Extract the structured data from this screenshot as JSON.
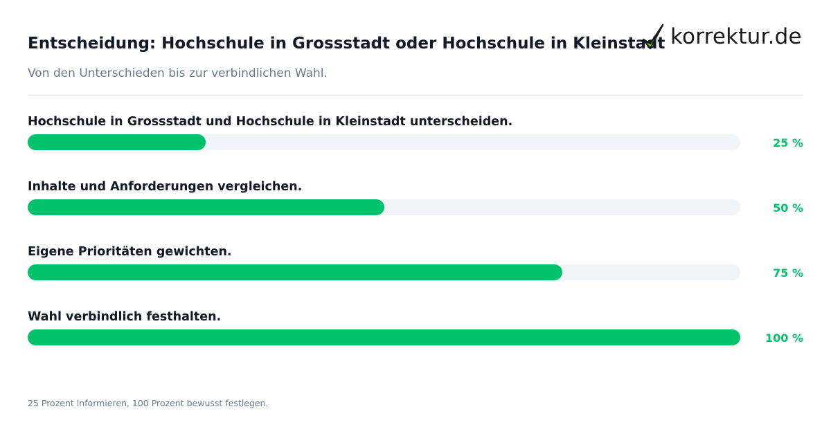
{
  "title": "Entscheidung: Hochschule in Grossstadt oder Hochschule in Kleinstadt",
  "subtitle": "Von den Unterschieden bis zur verbindlichen Wahl.",
  "logo": {
    "text": "korrektur.de",
    "icon": "checkmark-icon",
    "colors": {
      "check_fill": "#7ed321",
      "check_stroke": "#1a1a1a"
    }
  },
  "footnote": "25 Prozent informieren, 100 Prozent bewusst festlegen.",
  "colors": {
    "accent": "#00c26b",
    "track": "#f1f4f8",
    "text": "#111827",
    "muted": "#6b7a90"
  },
  "chart_data": {
    "type": "bar",
    "orientation": "horizontal",
    "categories": [
      "Hochschule in Grossstadt und Hochschule in Kleinstadt unterscheiden.",
      "Inhalte und Anforderungen vergleichen.",
      "Eigene Prioritäten gewichten.",
      "Wahl verbindlich festhalten."
    ],
    "values": [
      25,
      50,
      75,
      100
    ],
    "value_labels": [
      "25 %",
      "50 %",
      "75 %",
      "100 %"
    ],
    "xlim": [
      0,
      100
    ],
    "grid": false,
    "legend": "none"
  }
}
